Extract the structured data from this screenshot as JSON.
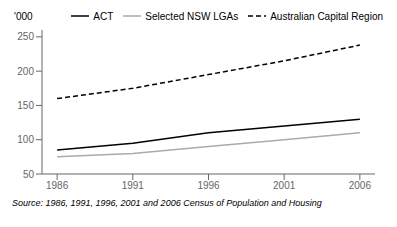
{
  "chart_data": {
    "type": "line",
    "x": [
      1986,
      1991,
      1996,
      2001,
      2006
    ],
    "series": [
      {
        "name": "ACT",
        "color": "#000000",
        "line_style": "solid",
        "values": [
          85,
          95,
          110,
          120,
          130
        ]
      },
      {
        "name": "Selected NSW LGAs",
        "color": "#aaaaaa",
        "line_style": "solid",
        "values": [
          75,
          80,
          90,
          100,
          110
        ]
      },
      {
        "name": "Australian Capital Region",
        "color": "#000000",
        "line_style": "dashed",
        "values": [
          160,
          175,
          195,
          215,
          238
        ]
      }
    ],
    "xlim": [
      1985,
      2007
    ],
    "xticks": [
      1986,
      1991,
      1996,
      2001,
      2006
    ],
    "ylim": [
      50,
      260
    ],
    "yticks": [
      50,
      100,
      150,
      200,
      250
    ],
    "ylabel": "'000",
    "annotations": [
      "Source: 1986, 1991, 1996, 2001 and 2006 Census of Population and Housing"
    ],
    "grid": false,
    "legend": "top"
  }
}
